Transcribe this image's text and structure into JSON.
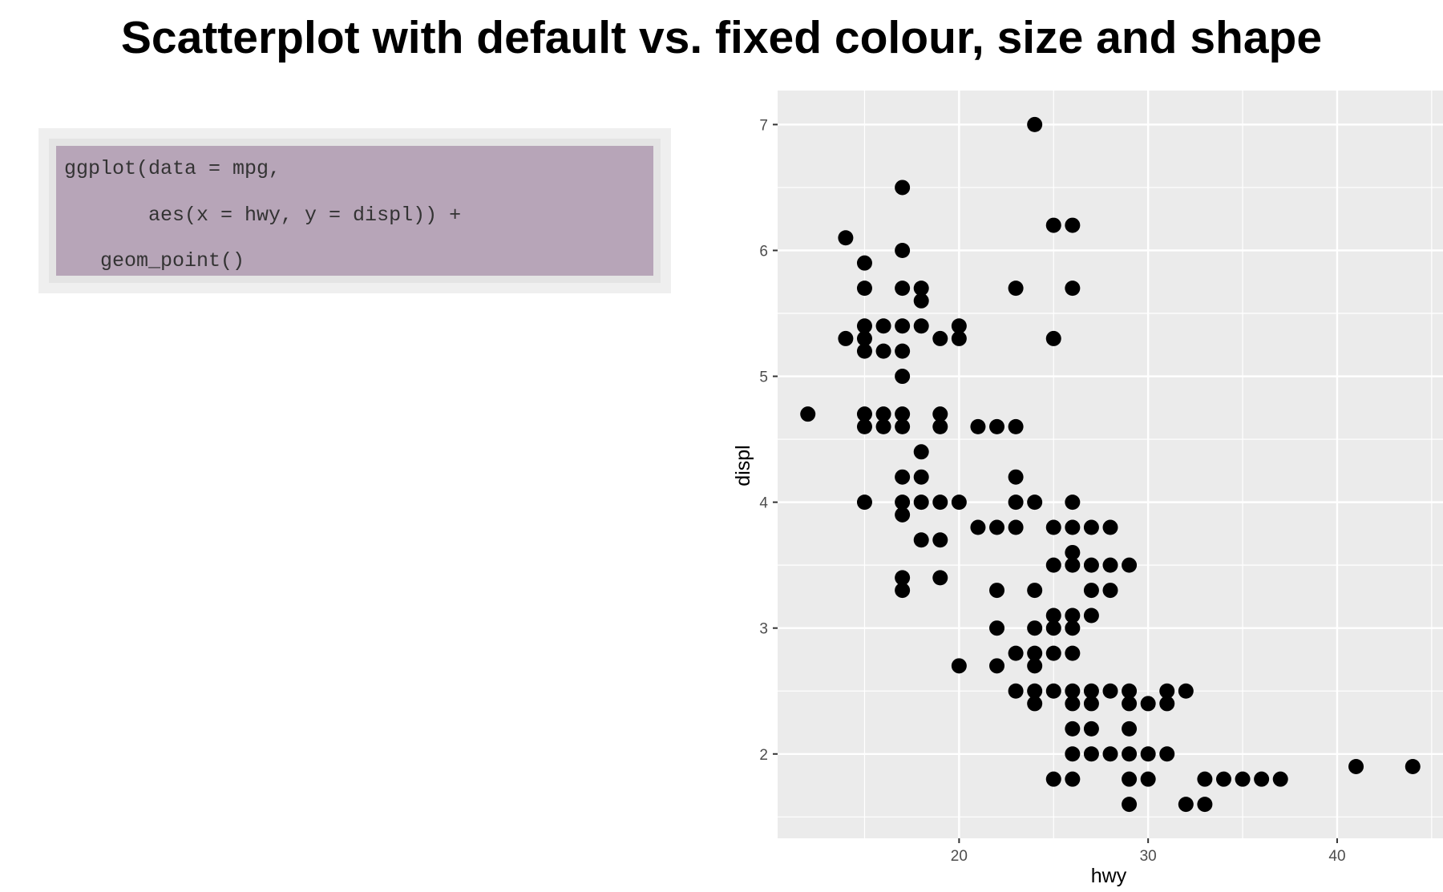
{
  "page": {
    "title": "Scatterplot with default vs. fixed colour, size and shape"
  },
  "code": {
    "lines": [
      "ggplot(data = mpg,",
      "       aes(x = hwy, y = displ)) +",
      "   geom_point()"
    ]
  },
  "colors": {
    "panel_bg": "#ebebeb",
    "grid": "#ffffff",
    "point": "#000000",
    "code_bg": "#b7a5b8",
    "code_text": "#333333"
  },
  "chart_data": {
    "type": "scatter",
    "title": "",
    "xlabel": "hwy",
    "ylabel": "displ",
    "xlim": [
      10.4,
      45.6
    ],
    "ylim": [
      1.33,
      7.27
    ],
    "xticks": [
      20,
      30,
      40
    ],
    "yticks": [
      2,
      3,
      4,
      5,
      6,
      7
    ],
    "grid": true,
    "legend": "none",
    "points": [
      [
        24,
        7.0
      ],
      [
        17,
        6.5
      ],
      [
        25,
        6.2
      ],
      [
        26,
        6.2
      ],
      [
        14,
        6.1
      ],
      [
        17,
        6.0
      ],
      [
        15,
        5.9
      ],
      [
        15,
        5.7
      ],
      [
        17,
        5.7
      ],
      [
        18,
        5.7
      ],
      [
        23,
        5.7
      ],
      [
        26,
        5.7
      ],
      [
        18,
        5.6
      ],
      [
        15,
        5.4
      ],
      [
        16,
        5.4
      ],
      [
        17,
        5.4
      ],
      [
        18,
        5.4
      ],
      [
        20,
        5.4
      ],
      [
        14,
        5.3
      ],
      [
        15,
        5.3
      ],
      [
        19,
        5.3
      ],
      [
        20,
        5.3
      ],
      [
        25,
        5.3
      ],
      [
        15,
        5.2
      ],
      [
        16,
        5.2
      ],
      [
        17,
        5.2
      ],
      [
        17,
        5.0
      ],
      [
        12,
        4.7
      ],
      [
        15,
        4.7
      ],
      [
        16,
        4.7
      ],
      [
        17,
        4.7
      ],
      [
        19,
        4.7
      ],
      [
        15,
        4.6
      ],
      [
        16,
        4.6
      ],
      [
        17,
        4.6
      ],
      [
        19,
        4.6
      ],
      [
        21,
        4.6
      ],
      [
        22,
        4.6
      ],
      [
        23,
        4.6
      ],
      [
        18,
        4.4
      ],
      [
        17,
        4.2
      ],
      [
        18,
        4.2
      ],
      [
        23,
        4.2
      ],
      [
        15,
        4.0
      ],
      [
        17,
        4.0
      ],
      [
        18,
        4.0
      ],
      [
        19,
        4.0
      ],
      [
        20,
        4.0
      ],
      [
        23,
        4.0
      ],
      [
        24,
        4.0
      ],
      [
        26,
        4.0
      ],
      [
        17,
        3.9
      ],
      [
        21,
        3.8
      ],
      [
        22,
        3.8
      ],
      [
        23,
        3.8
      ],
      [
        25,
        3.8
      ],
      [
        26,
        3.8
      ],
      [
        27,
        3.8
      ],
      [
        28,
        3.8
      ],
      [
        18,
        3.7
      ],
      [
        19,
        3.7
      ],
      [
        26,
        3.6
      ],
      [
        25,
        3.5
      ],
      [
        26,
        3.5
      ],
      [
        27,
        3.5
      ],
      [
        28,
        3.5
      ],
      [
        29,
        3.5
      ],
      [
        17,
        3.4
      ],
      [
        19,
        3.4
      ],
      [
        17,
        3.3
      ],
      [
        22,
        3.3
      ],
      [
        24,
        3.3
      ],
      [
        27,
        3.3
      ],
      [
        28,
        3.3
      ],
      [
        25,
        3.1
      ],
      [
        26,
        3.1
      ],
      [
        27,
        3.1
      ],
      [
        22,
        3.0
      ],
      [
        24,
        3.0
      ],
      [
        25,
        3.0
      ],
      [
        26,
        3.0
      ],
      [
        23,
        2.8
      ],
      [
        24,
        2.8
      ],
      [
        25,
        2.8
      ],
      [
        26,
        2.8
      ],
      [
        20,
        2.7
      ],
      [
        22,
        2.7
      ],
      [
        24,
        2.7
      ],
      [
        23,
        2.5
      ],
      [
        24,
        2.5
      ],
      [
        25,
        2.5
      ],
      [
        26,
        2.5
      ],
      [
        27,
        2.5
      ],
      [
        28,
        2.5
      ],
      [
        29,
        2.5
      ],
      [
        31,
        2.5
      ],
      [
        32,
        2.5
      ],
      [
        24,
        2.4
      ],
      [
        26,
        2.4
      ],
      [
        27,
        2.4
      ],
      [
        29,
        2.4
      ],
      [
        30,
        2.4
      ],
      [
        31,
        2.4
      ],
      [
        26,
        2.2
      ],
      [
        27,
        2.2
      ],
      [
        29,
        2.2
      ],
      [
        26,
        2.0
      ],
      [
        27,
        2.0
      ],
      [
        28,
        2.0
      ],
      [
        29,
        2.0
      ],
      [
        30,
        2.0
      ],
      [
        31,
        2.0
      ],
      [
        41,
        1.9
      ],
      [
        44,
        1.9
      ],
      [
        25,
        1.8
      ],
      [
        26,
        1.8
      ],
      [
        29,
        1.8
      ],
      [
        30,
        1.8
      ],
      [
        33,
        1.8
      ],
      [
        34,
        1.8
      ],
      [
        35,
        1.8
      ],
      [
        36,
        1.8
      ],
      [
        37,
        1.8
      ],
      [
        29,
        1.6
      ],
      [
        32,
        1.6
      ],
      [
        33,
        1.6
      ]
    ]
  }
}
